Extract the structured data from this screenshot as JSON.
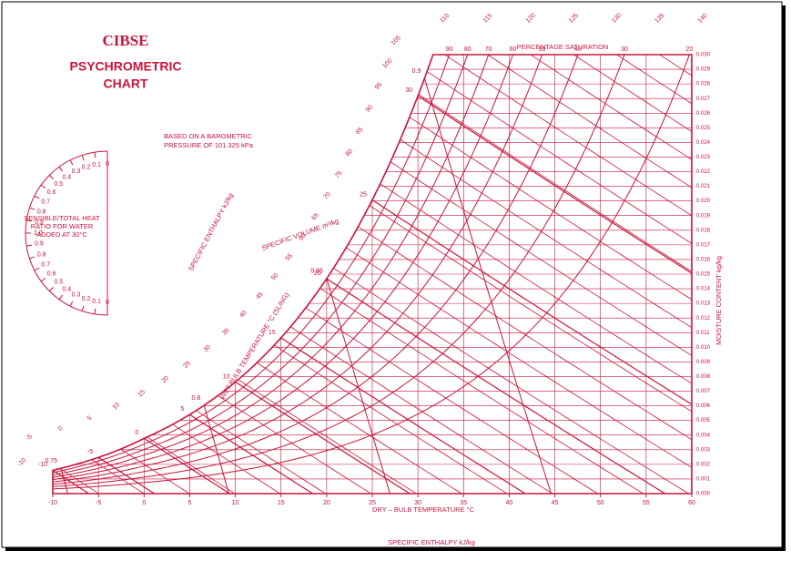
{
  "chart_data": {
    "type": "psychrometric",
    "publisher": "CIBSE",
    "title": [
      "PSYCHROMETRIC",
      "CHART"
    ],
    "note": "BASED ON A BAROMETRIC",
    "pressure": {
      "value": 101.325,
      "label": "PRESSURE OF 101.325 kPa"
    },
    "color": "#c8143c",
    "x_label": "DRY – BULB TEMPERATURE  °C",
    "y_label": "MOISTURE CONTENT  kg/kg",
    "xlim": [
      -10,
      60
    ],
    "xticks": [
      -10,
      -5,
      0,
      5,
      10,
      15,
      20,
      25,
      30,
      35,
      40,
      45,
      50,
      55,
      60
    ],
    "ylim": [
      0,
      0.03
    ],
    "yticks": [
      {
        "value": 0,
        "label": "0.000"
      },
      0.001,
      0.002,
      0.003,
      0.004,
      0.005,
      0.006,
      0.007,
      0.008,
      0.009,
      {
        "value": 0.01,
        "label": "0.010"
      },
      0.011,
      0.012,
      0.013,
      0.014,
      0.015,
      0.016,
      0.017,
      0.018,
      0.019,
      {
        "value": 0.02,
        "label": "0.020"
      },
      0.021,
      0.022,
      0.023,
      0.024,
      0.025,
      0.026,
      0.027,
      0.028,
      0.029,
      {
        "value": 0.03,
        "label": "0.030"
      }
    ],
    "grid": true,
    "saturation_label": "PERCENTAGE SATURATION",
    "percentage_saturation": [
      90,
      80,
      70,
      60,
      50,
      40,
      30,
      20
    ],
    "enthalpy_label": "SPECIFIC ENTHALPY  kJ/kg",
    "enthalpy": [
      -10,
      -5,
      0,
      5,
      10,
      15,
      20,
      25,
      30,
      35,
      40,
      45,
      50,
      55,
      60,
      65,
      70,
      75,
      80,
      85,
      90,
      95,
      100,
      105,
      110,
      115,
      120,
      125,
      130,
      135,
      140
    ],
    "wet_bulb_label": "WET BULB TEMPERATURE  °C (SLING)",
    "wet_bulb": [
      -10,
      -5,
      0,
      5,
      10,
      15,
      20,
      25,
      30
    ],
    "volume_label": "SPECIFIC VOLUME  m³/kg",
    "specific_volume": [
      0.75,
      0.8,
      0.85,
      0.9
    ],
    "protractor_text": [
      "SENSIBLE/TOTAL HEAT",
      "RATIO FOR WATER",
      "ADDED AT 30°C"
    ],
    "heat_ratio": [
      0,
      0.1,
      0.2,
      0.3,
      0.4,
      0.5,
      0.6,
      0.7,
      0.8,
      0.9,
      {
        "value": 1,
        "label": "1.0"
      }
    ]
  }
}
